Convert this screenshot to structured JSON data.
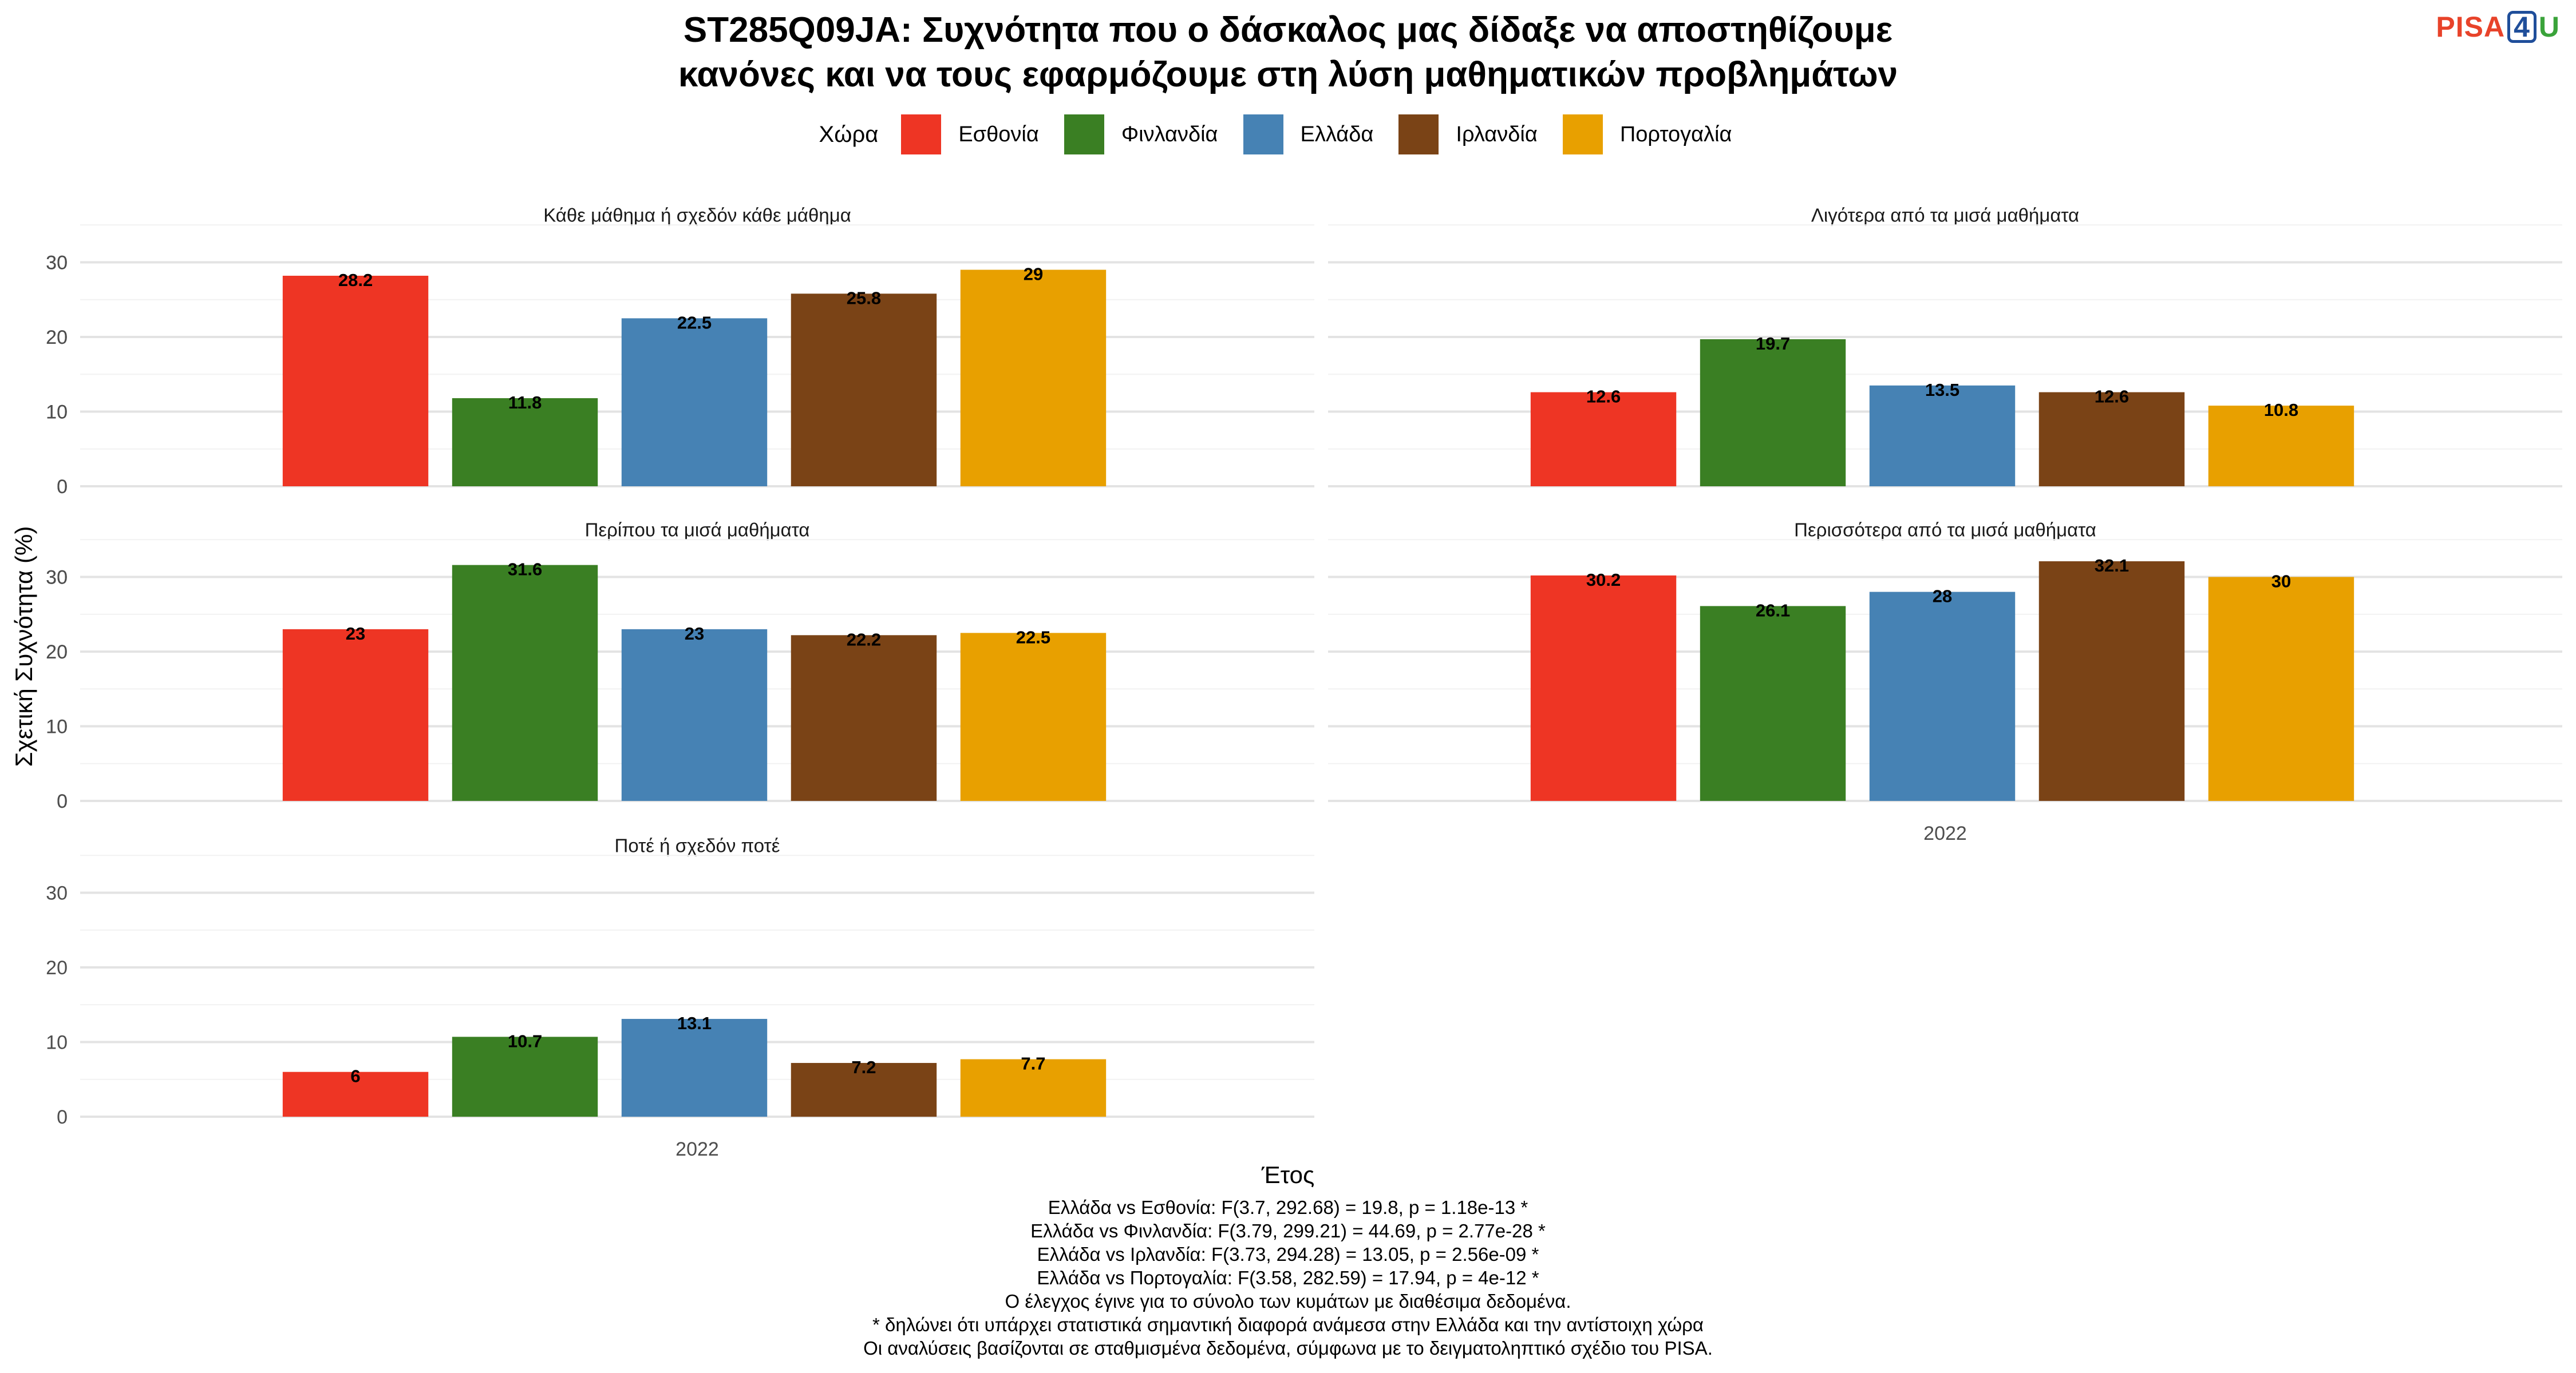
{
  "title_lines": [
    "ST285Q09JA: Συχνότητα που ο δάσκαλος μας δίδαξε να αποστηθίζουμε",
    "κανόνες και να τους εφαρμόζουμε στη λύση μαθηματικών προβλημάτων"
  ],
  "logo": {
    "pisa": "PISA",
    "four": "4",
    "u": "U"
  },
  "legend": {
    "title": "Χώρα",
    "items": [
      {
        "label": "Εσθονία",
        "color": "#EE3524"
      },
      {
        "label": "Φινλανδία",
        "color": "#3A7F23"
      },
      {
        "label": "Ελλάδα",
        "color": "#4682B4"
      },
      {
        "label": "Ιρλανδία",
        "color": "#7A4316"
      },
      {
        "label": "Πορτογαλία",
        "color": "#E8A000"
      }
    ]
  },
  "chart_data": {
    "type": "bar",
    "facets": [
      {
        "title": "Κάθε μάθημα ή σχεδόν κάθε μάθημα",
        "x": "2022",
        "values": [
          28.2,
          11.8,
          22.5,
          25.8,
          29
        ]
      },
      {
        "title": "Λιγότερα από τα μισά μαθήματα",
        "x": "2022",
        "values": [
          12.6,
          19.7,
          13.5,
          12.6,
          10.8
        ]
      },
      {
        "title": "Περίπου τα μισά μαθήματα",
        "x": "2022",
        "values": [
          23,
          31.6,
          23,
          22.2,
          22.5
        ]
      },
      {
        "title": "Περισσότερα από τα μισά μαθήματα",
        "x": "2022",
        "values": [
          30.2,
          26.1,
          28,
          32.1,
          30
        ]
      },
      {
        "title": "Ποτέ ή σχεδόν ποτέ",
        "x": "2022",
        "values": [
          6,
          10.7,
          13.1,
          7.2,
          7.7
        ]
      }
    ],
    "series": [
      "Εσθονία",
      "Φινλανδία",
      "Ελλάδα",
      "Ιρλανδία",
      "Πορτογαλία"
    ],
    "xlabel": "Έτος",
    "ylabel": "Σχετική Συχνότητα (%)",
    "ylim": [
      0,
      35
    ],
    "yticks": [
      0,
      10,
      20,
      30
    ],
    "xtick": "2022",
    "grid": true,
    "legend_position": "top"
  },
  "footnote": [
    "Ελλάδα vs Εσθονία: F(3.7, 292.68) = 19.8, p = 1.18e-13 *",
    "Ελλάδα vs Φινλανδία: F(3.79, 299.21) = 44.69, p = 2.77e-28 *",
    "Ελλάδα vs Ιρλανδία: F(3.73, 294.28) = 13.05, p = 2.56e-09 *",
    "Ελλάδα vs Πορτογαλία: F(3.58, 282.59) = 17.94, p = 4e-12 *",
    "Ο έλεγχος έγινε για το σύνολο των κυμάτων με διαθέσιμα δεδομένα.",
    "* δηλώνει ότι υπάρχει στατιστικά σημαντική διαφορά ανάμεσα στην Ελλάδα και την αντίστοιχη χώρα",
    "Οι αναλύσεις βασίζονται σε σταθμισμένα δεδομένα, σύμφωνα με το δειγματοληπτικό σχέδιο του PISA."
  ]
}
